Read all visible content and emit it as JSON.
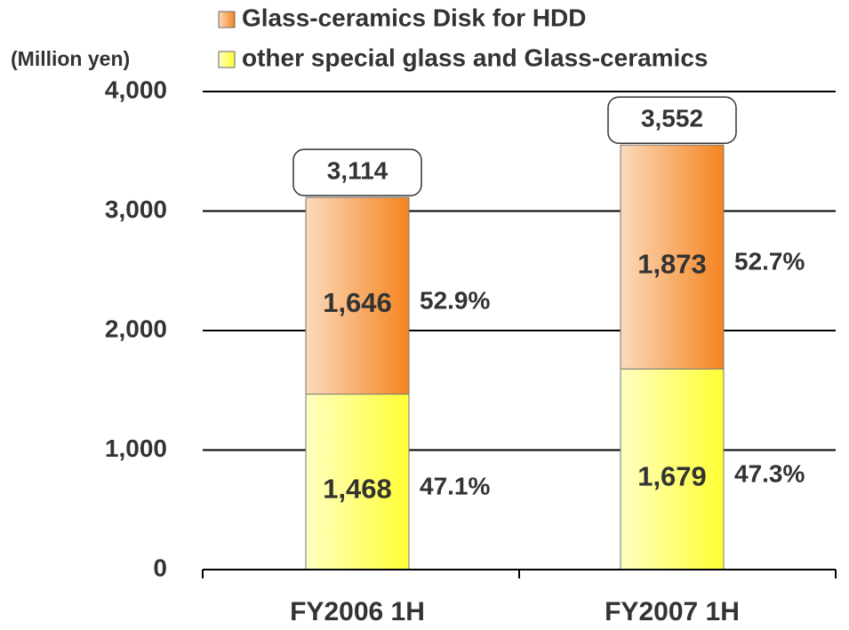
{
  "chart_data": {
    "type": "stacked_bar",
    "y_axis_label": "(Million yen)",
    "categories": [
      "FY2006 1H",
      "FY2007 1H"
    ],
    "series": [
      {
        "name": "other special glass and Glass-ceramics",
        "color": "#ffff33",
        "values": [
          1468,
          1679
        ],
        "value_labels": [
          "1,468",
          "1,679"
        ],
        "share_labels": [
          "47.1%",
          "47.3%"
        ]
      },
      {
        "name": "Glass-ceramics Disk for HDD",
        "color": "#f5841f",
        "values": [
          1646,
          1873
        ],
        "value_labels": [
          "1,646",
          "1,873"
        ],
        "share_labels": [
          "52.9%",
          "52.7%"
        ]
      }
    ],
    "totals": [
      3114,
      3552
    ],
    "total_labels": [
      "3,114",
      "3,552"
    ],
    "ylim": [
      0,
      4000
    ],
    "yticks": [
      0,
      {
        "value": 1000,
        "label": "1,000"
      },
      {
        "value": 2000,
        "label": "2,000"
      },
      {
        "value": 3000,
        "label": "3,000"
      },
      {
        "value": 4000,
        "label": "4,000"
      }
    ],
    "grid": true,
    "legend": "top"
  }
}
